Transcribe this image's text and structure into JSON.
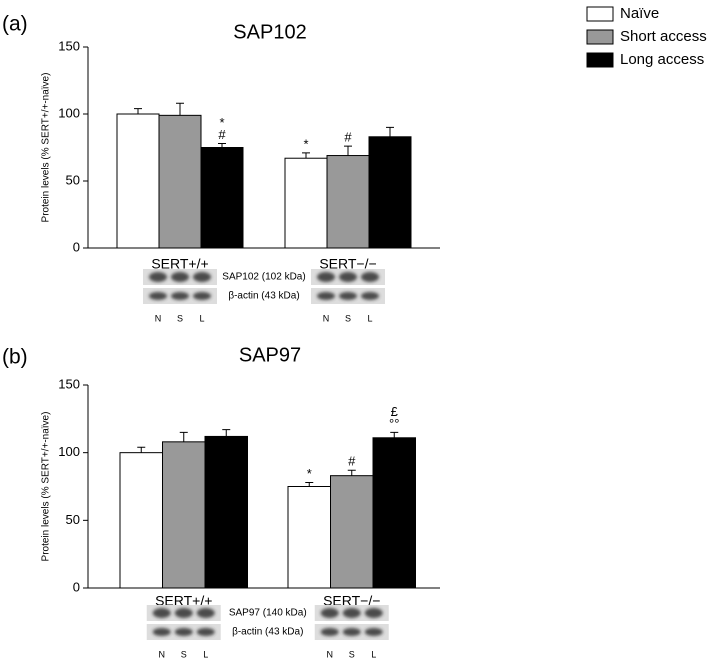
{
  "chart_data": [
    {
      "type": "bar",
      "panel": "(a)",
      "title": "SAP102",
      "ylabel": "Protein levels (% SERT+/+-naïve)",
      "categories": [
        "SERT+/+",
        "SERT−/−"
      ],
      "ylim": [
        0,
        150
      ],
      "yticks": [
        0,
        50,
        100,
        150
      ],
      "legend": "upper right",
      "blot_labels": [
        "SAP102 (102 kDa)",
        "β-actin (43 kDa)"
      ],
      "lanes": [
        "N",
        "S",
        "L"
      ],
      "series": [
        {
          "name": "Naïve",
          "color": "#ffffff",
          "values": [
            100,
            67
          ],
          "errors": [
            4,
            4
          ],
          "annotations": [
            null,
            [
              "*"
            ]
          ]
        },
        {
          "name": "Short access",
          "color": "#999999",
          "values": [
            99,
            69
          ],
          "errors": [
            9,
            7
          ],
          "annotations": [
            null,
            [
              "#"
            ]
          ]
        },
        {
          "name": "Long access",
          "color": "#000000",
          "values": [
            75,
            83
          ],
          "errors": [
            3,
            7
          ],
          "annotations": [
            [
              "*",
              "#"
            ],
            null
          ]
        }
      ]
    },
    {
      "type": "bar",
      "panel": "(b)",
      "title": "SAP97",
      "ylabel": "Protein levels (% SERT+/+-naïve)",
      "categories": [
        "SERT+/+",
        "SERT−/−"
      ],
      "ylim": [
        0,
        150
      ],
      "yticks": [
        0,
        50,
        100,
        150
      ],
      "blot_labels": [
        "SAP97 (140 kDa)",
        "β-actin (43 kDa)"
      ],
      "lanes": [
        "N",
        "S",
        "L"
      ],
      "series": [
        {
          "color": "#ffffff",
          "values": [
            100,
            75
          ],
          "errors": [
            4,
            3
          ],
          "annotations": [
            null,
            [
              "*"
            ]
          ]
        },
        {
          "color": "#999999",
          "values": [
            108,
            83
          ],
          "errors": [
            7,
            4
          ],
          "annotations": [
            null,
            [
              "#"
            ]
          ]
        },
        {
          "color": "#000000",
          "values": [
            112,
            111
          ],
          "errors": [
            5,
            4
          ],
          "annotations": [
            null,
            [
              "£",
              "°°"
            ]
          ]
        }
      ]
    }
  ]
}
